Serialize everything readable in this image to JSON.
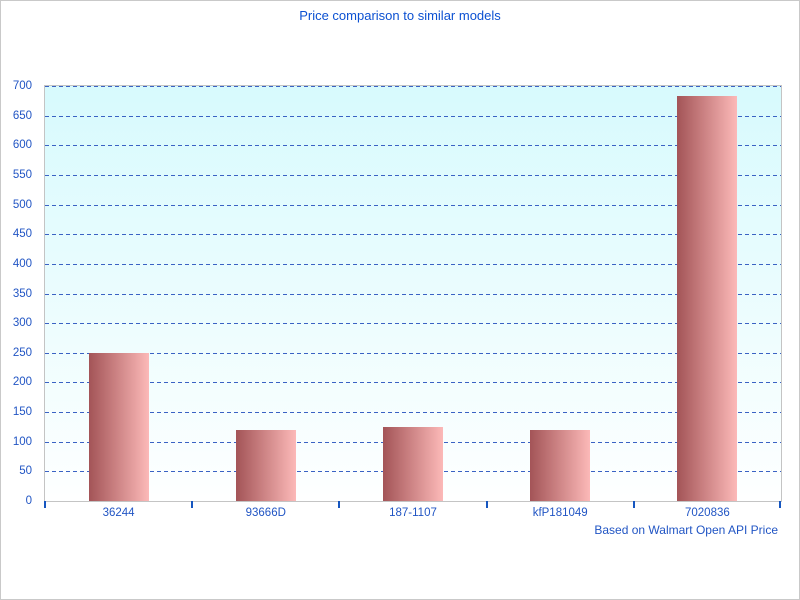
{
  "chart_data": {
    "type": "bar",
    "title": "Price comparison to similar models",
    "caption": "Based on Walmart Open API Price",
    "categories": [
      "36244",
      "93666D",
      "187-1107",
      "kfP181049",
      "7020836"
    ],
    "values": [
      250,
      120,
      125,
      120,
      683
    ],
    "xlabel": "",
    "ylabel": "",
    "ylim": [
      0,
      700
    ],
    "ytick_step": 50,
    "grid": "horizontal-dashed",
    "legend": "none",
    "colors": {
      "title": "#0c51d2",
      "axis_label": "#2155c4",
      "gridline": "#3a62c4",
      "tick": "#1656c0",
      "bar_gradient_left": "#a35457",
      "bar_gradient_right": "#fcb9b8",
      "plot_bg_top": "#d7fafd",
      "plot_bg_bottom": "#feffff",
      "plot_border": "#c4c4c4",
      "window_border": "#c9c9c9"
    }
  }
}
